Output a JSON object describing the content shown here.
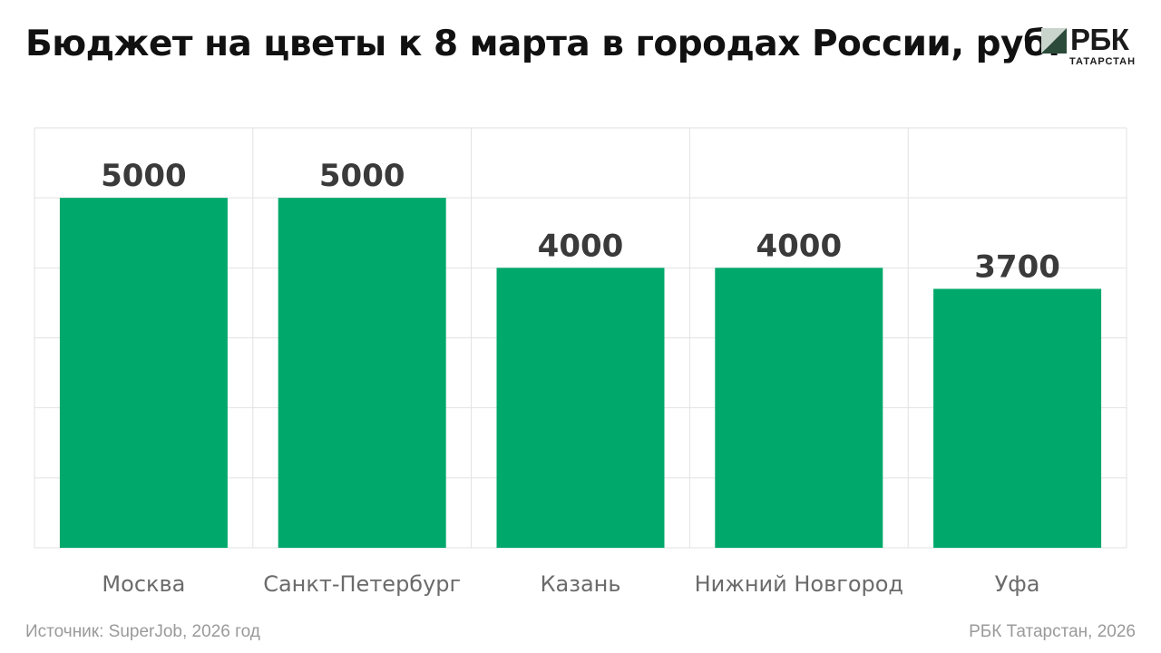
{
  "title": "Бюджет на цветы к 8 марта в городах России, руб.",
  "logo": {
    "word": "РБК",
    "sub": "ТАТАРСТАН"
  },
  "colors": {
    "bar": "#00a86b",
    "grid": "#e2e2e2",
    "logo_dark": "#2b4a3a",
    "logo_light": "#c9d4cd"
  },
  "chart_data": {
    "type": "bar",
    "categories": [
      "Москва",
      "Санкт-Петербург",
      "Казань",
      "Нижний Новгород",
      "Уфа"
    ],
    "values": [
      5000,
      5000,
      4000,
      4000,
      3700
    ],
    "data_labels": [
      "5000",
      "5000",
      "4000",
      "4000",
      "3700"
    ],
    "title": "Бюджет на цветы к 8 марта в городах России, руб.",
    "xlabel": "",
    "ylabel": "",
    "ylim": [
      0,
      6000
    ],
    "grid": true,
    "legend": "none"
  },
  "footer": {
    "source": "Источник: SuperJob, 2026 год",
    "credit": "РБК Татарстан, 2026"
  }
}
